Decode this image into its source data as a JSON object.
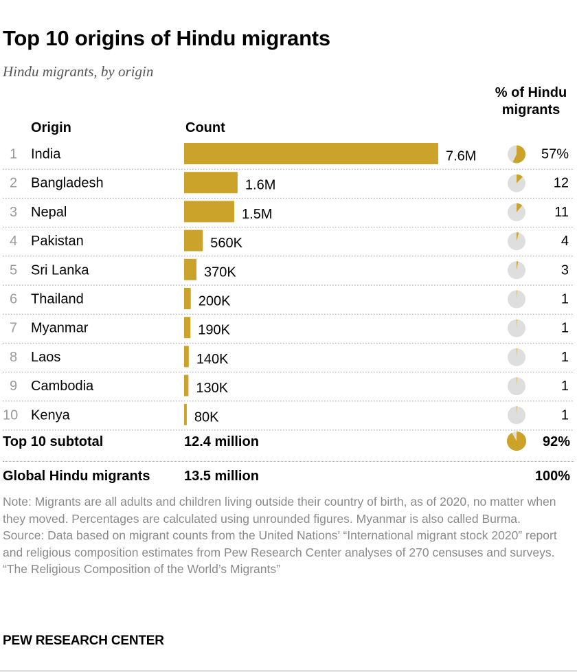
{
  "title": "Top 10 origins of Hindu migrants",
  "subtitle": "Hindu migrants, by origin",
  "headers": {
    "origin": "Origin",
    "count": "Count",
    "pct": "% of Hindu migrants"
  },
  "colors": {
    "bar": "#cba32b",
    "pie_bg": "#dedede"
  },
  "chart_data": {
    "type": "bar",
    "orientation": "horizontal",
    "title": "Top 10 origins of Hindu migrants",
    "categories": [
      "India",
      "Bangladesh",
      "Nepal",
      "Pakistan",
      "Sri Lanka",
      "Thailand",
      "Myanmar",
      "Laos",
      "Cambodia",
      "Kenya"
    ],
    "ranks": [
      "1",
      "2",
      "3",
      "4",
      "5",
      "6",
      "7",
      "8",
      "9",
      "10"
    ],
    "values": [
      7600000,
      1600000,
      1500000,
      560000,
      370000,
      200000,
      190000,
      140000,
      130000,
      80000
    ],
    "value_labels": [
      "7.6M",
      "1.6M",
      "1.5M",
      "560K",
      "370K",
      "200K",
      "190K",
      "140K",
      "130K",
      "80K"
    ],
    "percent_values": [
      57,
      12,
      11,
      4,
      3,
      1,
      1,
      1,
      1,
      1
    ],
    "percent_labels": [
      "57%",
      "12",
      "11",
      "4",
      "3",
      "1",
      "1",
      "1",
      "1",
      "1"
    ],
    "subtotal": {
      "label": "Top 10 subtotal",
      "count": "12.4 million",
      "percent": 92,
      "percent_label": "92%"
    },
    "total": {
      "label": "Global Hindu migrants",
      "count": "13.5 million",
      "percent_label": "100%"
    }
  },
  "notes": {
    "note": "Note: Migrants are all adults and children living outside their country of birth, as of 2020, no matter when they moved. Percentages are calculated using unrounded figures. Myanmar is also called Burma.",
    "source": "Source: Data based on migrant counts from the United Nations’ “International migrant stock 2020” report and religious composition estimates from Pew Research Center analyses of 270 censuses and surveys.",
    "report": "“The Religious Composition of the World’s Migrants”"
  },
  "brand": "PEW RESEARCH CENTER"
}
